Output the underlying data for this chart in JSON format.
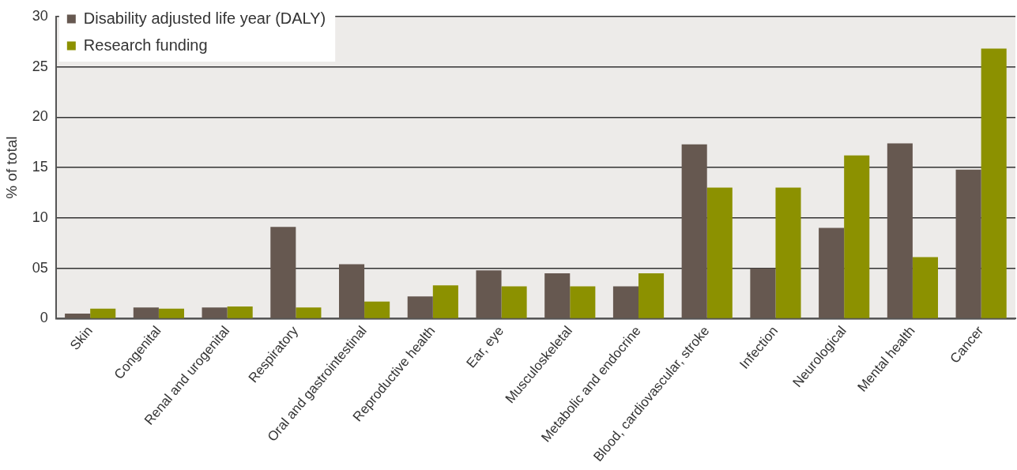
{
  "chart_data": {
    "type": "bar",
    "ylabel": "% of total",
    "categories": [
      "Skin",
      "Congenital",
      "Renal and urogenital",
      "Respiratory",
      "Oral and gastrointestinal",
      "Reproductive health",
      "Ear, eye",
      "Musculoskeletal",
      "Metabolic and endocrine",
      "Blood, cardiovascular, stroke",
      "Infection",
      "Neurological",
      "Mental health",
      "Cancer"
    ],
    "series": [
      {
        "name": "Disability adjusted life year (DALY)",
        "color": "#665850",
        "values": [
          0.5,
          1.1,
          1.1,
          9.1,
          5.4,
          2.2,
          4.8,
          4.5,
          3.2,
          17.3,
          5.0,
          9.0,
          17.4,
          14.8
        ]
      },
      {
        "name": "Research funding",
        "color": "#8c9100",
        "values": [
          1.0,
          1.0,
          1.2,
          1.1,
          1.7,
          3.3,
          3.2,
          3.2,
          4.5,
          13.0,
          13.0,
          16.2,
          6.1,
          26.8
        ]
      }
    ],
    "ylim": [
      0,
      30
    ],
    "yticks": [
      0,
      {
        "value": 5,
        "label": "05"
      },
      10,
      15,
      20,
      25,
      30
    ],
    "grid": "y",
    "legend": "top left"
  }
}
